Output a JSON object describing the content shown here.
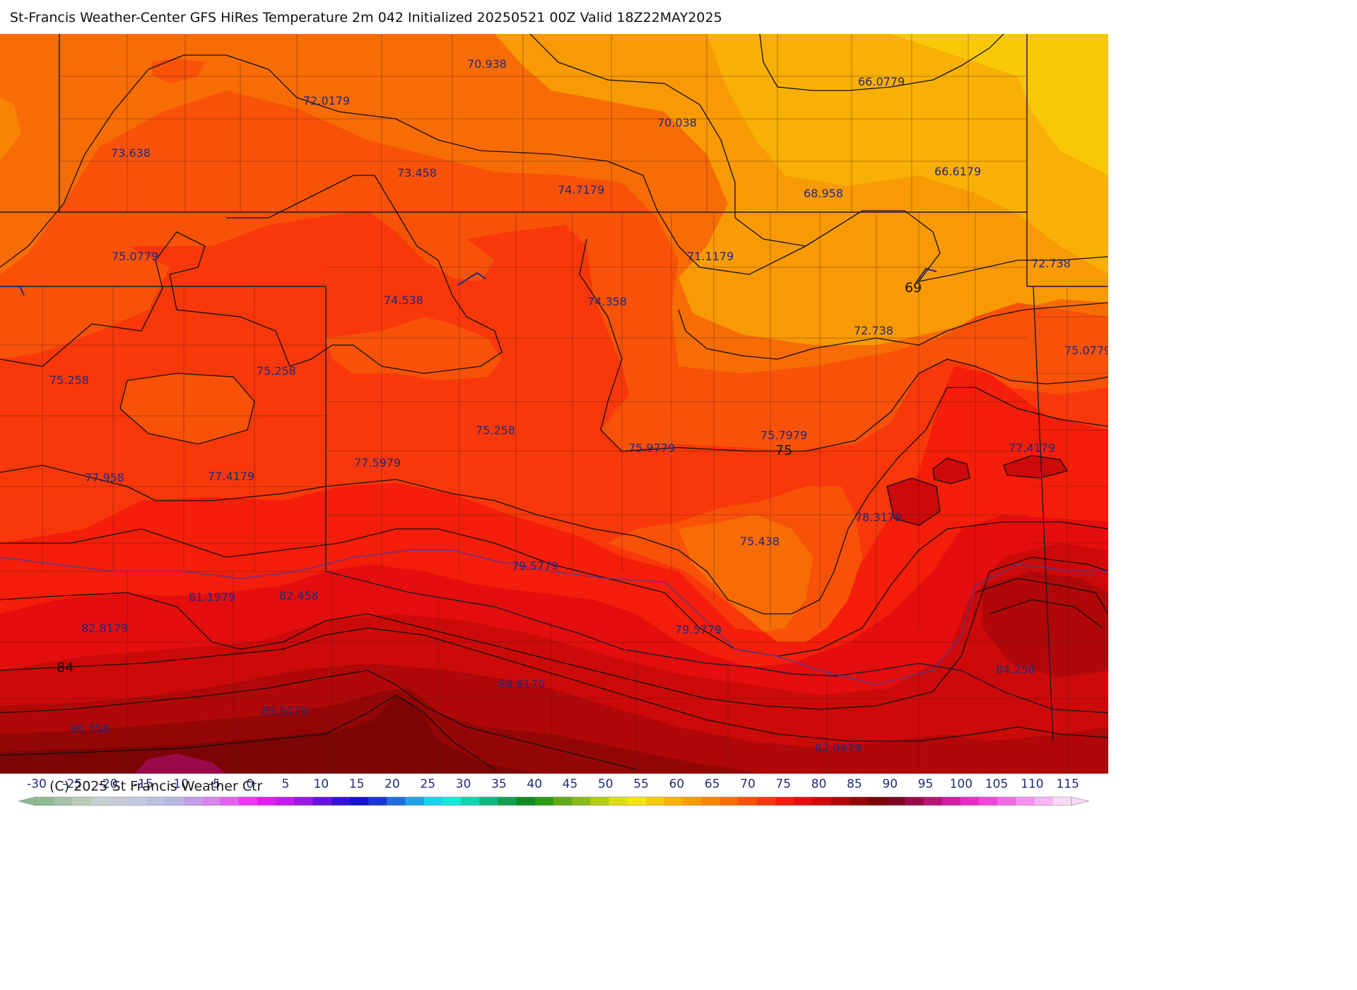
{
  "title": "St-Francis Weather-Center GFS HiRes Temperature 2m  042 Initialized 20250521 00Z Valid 18Z22MAY2025",
  "copyright": "(C) 2025 St Francis Weather Ctr",
  "colorbar": {
    "ticks": [
      "-30",
      "-25",
      "-20",
      "-15",
      "-10",
      "-5",
      "0",
      "5",
      "10",
      "15",
      "20",
      "25",
      "30",
      "35",
      "40",
      "45",
      "50",
      "55",
      "60",
      "65",
      "70",
      "75",
      "80",
      "85",
      "90",
      "95",
      "100",
      "105",
      "110",
      "115"
    ],
    "colors": [
      "#8fb894",
      "#a4c2a7",
      "#b8cdb8",
      "#c6cfcf",
      "#c8c9d8",
      "#c4c8de",
      "#bcc0e0",
      "#b6b8e2",
      "#c39ee6",
      "#d883ee",
      "#e65ff2",
      "#ef36f4",
      "#e21ef0",
      "#c41aee",
      "#9b18e6",
      "#6a12dc",
      "#3512d2",
      "#1212c8",
      "#1636d2",
      "#1e6fe0",
      "#1ea2ea",
      "#1ad2ee",
      "#18e8dc",
      "#14d4b0",
      "#10b880",
      "#10a050",
      "#0e8c22",
      "#2c9a12",
      "#62aa14",
      "#8cba16",
      "#b4cc18",
      "#dcdc18",
      "#f4e410",
      "#f8c808",
      "#f8b004",
      "#f89a04",
      "#f88404",
      "#f86c06",
      "#f85208",
      "#f8380a",
      "#f41e0a",
      "#e40e0e",
      "#cc0a0a",
      "#b00808",
      "#940606",
      "#7c0404",
      "#7e0420",
      "#9a0a4a",
      "#b81478",
      "#d21ca4",
      "#e82cc8",
      "#f044dc",
      "#f46ae6",
      "#f690ee",
      "#f8b4f4",
      "#fad8f8"
    ]
  },
  "temperature_labels": [
    "70.938",
    "66.0779",
    "72.0179",
    "70.038",
    "73.638",
    "73.458",
    "74.7179",
    "68.958",
    "66.6179",
    "75.0779",
    "71.1179",
    "72.738",
    "69",
    "74.538",
    "74.358",
    "72.738",
    "75.258",
    "75.258",
    "75.0779",
    "75.258",
    "75.7979",
    "75.9779",
    "75",
    "77.5979",
    "77.4179",
    "77.958",
    "77.4179",
    "78.3179",
    "75.438",
    "79.5779",
    "81.1979",
    "82.458",
    "82.8179",
    "79.5779",
    "84",
    "84.6179",
    "84.258",
    "85.5179",
    "86.758",
    "82.0979"
  ],
  "contour_labels": [
    "69",
    "75",
    "84"
  ]
}
